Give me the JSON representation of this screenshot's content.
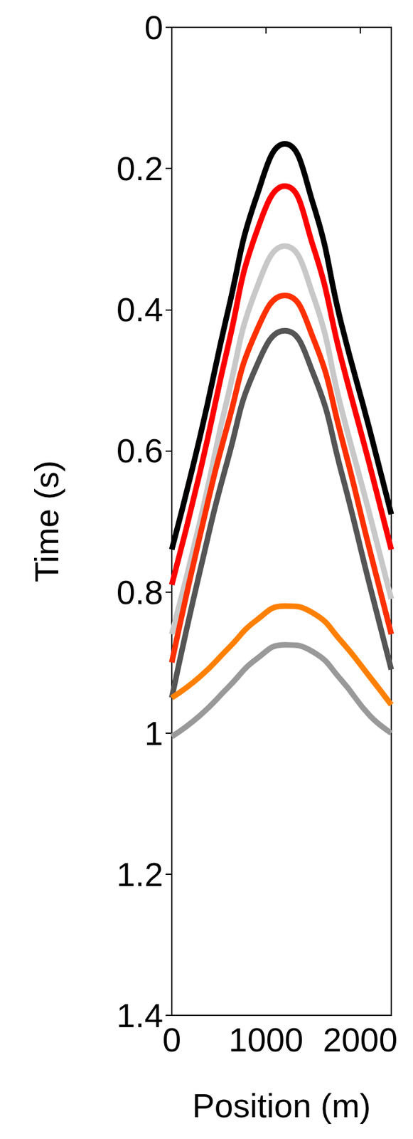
{
  "chart_data": {
    "type": "line",
    "x_label": "Position (m)",
    "y_label": "Time (s)",
    "x": [
      0,
      300,
      600,
      900,
      1200,
      1500,
      1800,
      2100,
      2330
    ],
    "series": [
      {
        "color": "#000000",
        "values": [
          0.74,
          0.58,
          0.4,
          0.24,
          0.165,
          0.25,
          0.42,
          0.57,
          0.69
        ]
      },
      {
        "color": "#ff0000",
        "values": [
          0.79,
          0.63,
          0.45,
          0.29,
          0.225,
          0.31,
          0.47,
          0.62,
          0.74
        ]
      },
      {
        "color": "#c8c8c8",
        "values": [
          0.86,
          0.7,
          0.52,
          0.37,
          0.31,
          0.38,
          0.54,
          0.69,
          0.81
        ]
      },
      {
        "color": "#ff3000",
        "values": [
          0.9,
          0.72,
          0.56,
          0.43,
          0.38,
          0.44,
          0.58,
          0.74,
          0.86
        ]
      },
      {
        "color": "#555555",
        "values": [
          0.95,
          0.77,
          0.61,
          0.48,
          0.43,
          0.49,
          0.63,
          0.79,
          0.91
        ]
      },
      {
        "color": "#ff8000",
        "values": [
          0.95,
          0.92,
          0.88,
          0.84,
          0.82,
          0.83,
          0.87,
          0.92,
          0.96
        ]
      },
      {
        "color": "#999999",
        "values": [
          1.005,
          0.975,
          0.935,
          0.895,
          0.875,
          0.885,
          0.925,
          0.975,
          1.0
        ]
      }
    ],
    "xlim": [
      0,
      2330
    ],
    "xticks": [
      0,
      1000,
      2000
    ],
    "ylim": [
      0,
      1.4
    ],
    "yticks": [
      0,
      0.2,
      0.4,
      0.6,
      0.8,
      1,
      1.2,
      1.4
    ],
    "line_style": "solid",
    "grid": false
  }
}
